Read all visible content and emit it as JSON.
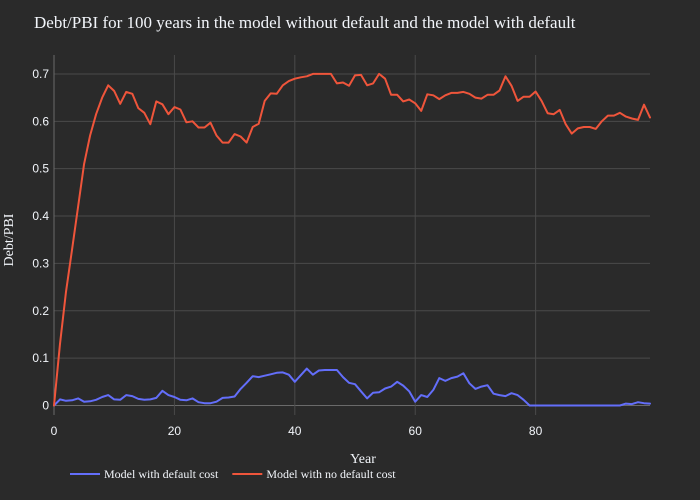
{
  "chart_data": {
    "type": "line",
    "title": "Debt/PBI for 100 years in the model without default and the model with default",
    "xlabel": "Year",
    "ylabel": "Debt/PBI",
    "xlim": [
      0,
      99
    ],
    "ylim": [
      -0.02,
      0.74
    ],
    "xticks": [
      0,
      20,
      40,
      60,
      80
    ],
    "yticks": [
      0,
      0.1,
      0.2,
      0.3,
      0.4,
      0.5,
      0.6,
      0.7
    ],
    "ytick_labels": [
      "0",
      "0.1",
      "0.2",
      "0.3",
      "0.4",
      "0.5",
      "0.6",
      "0.7"
    ],
    "grid": true,
    "legend_position": "bottom-left",
    "series": [
      {
        "name": "Model with default cost",
        "color": "#636efa",
        "values": [
          0,
          0.013,
          0.01,
          0.011,
          0.015,
          0.008,
          0.009,
          0.012,
          0.018,
          0.022,
          0.013,
          0.012,
          0.022,
          0.02,
          0.014,
          0.012,
          0.013,
          0.016,
          0.031,
          0.022,
          0.018,
          0.012,
          0.011,
          0.015,
          0.007,
          0.005,
          0.005,
          0.008,
          0.016,
          0.017,
          0.019,
          0.035,
          0.048,
          0.062,
          0.06,
          0.063,
          0.066,
          0.069,
          0.07,
          0.065,
          0.05,
          0.064,
          0.078,
          0.065,
          0.074,
          0.075,
          0.075,
          0.075,
          0.06,
          0.048,
          0.045,
          0.03,
          0.015,
          0.027,
          0.028,
          0.036,
          0.04,
          0.05,
          0.042,
          0.03,
          0.008,
          0.022,
          0.018,
          0.033,
          0.058,
          0.052,
          0.058,
          0.061,
          0.068,
          0.047,
          0.035,
          0.04,
          0.043,
          0.025,
          0.022,
          0.02,
          0.026,
          0.022,
          0.012,
          0,
          0,
          0,
          0,
          0,
          0,
          0,
          0,
          0,
          0,
          0,
          0,
          0,
          0,
          0,
          0,
          0.004,
          0.003,
          0.007,
          0.005,
          0.004
        ]
      },
      {
        "name": "Model with no default cost",
        "color": "#ef553b",
        "values": [
          0,
          0.13,
          0.24,
          0.33,
          0.42,
          0.51,
          0.57,
          0.615,
          0.65,
          0.676,
          0.664,
          0.637,
          0.662,
          0.658,
          0.628,
          0.618,
          0.594,
          0.642,
          0.636,
          0.615,
          0.63,
          0.625,
          0.598,
          0.6,
          0.587,
          0.587,
          0.597,
          0.57,
          0.555,
          0.555,
          0.573,
          0.568,
          0.555,
          0.588,
          0.595,
          0.643,
          0.659,
          0.658,
          0.676,
          0.685,
          0.69,
          0.693,
          0.695,
          0.7,
          0.7,
          0.7,
          0.7,
          0.68,
          0.682,
          0.675,
          0.697,
          0.698,
          0.676,
          0.68,
          0.7,
          0.69,
          0.656,
          0.656,
          0.642,
          0.646,
          0.638,
          0.622,
          0.657,
          0.655,
          0.647,
          0.655,
          0.66,
          0.66,
          0.662,
          0.658,
          0.65,
          0.648,
          0.656,
          0.656,
          0.665,
          0.695,
          0.675,
          0.643,
          0.652,
          0.652,
          0.663,
          0.643,
          0.617,
          0.615,
          0.624,
          0.594,
          0.574,
          0.585,
          0.588,
          0.588,
          0.584,
          0.6,
          0.612,
          0.612,
          0.618,
          0.61,
          0.606,
          0.603,
          0.635,
          0.608
        ]
      }
    ]
  }
}
